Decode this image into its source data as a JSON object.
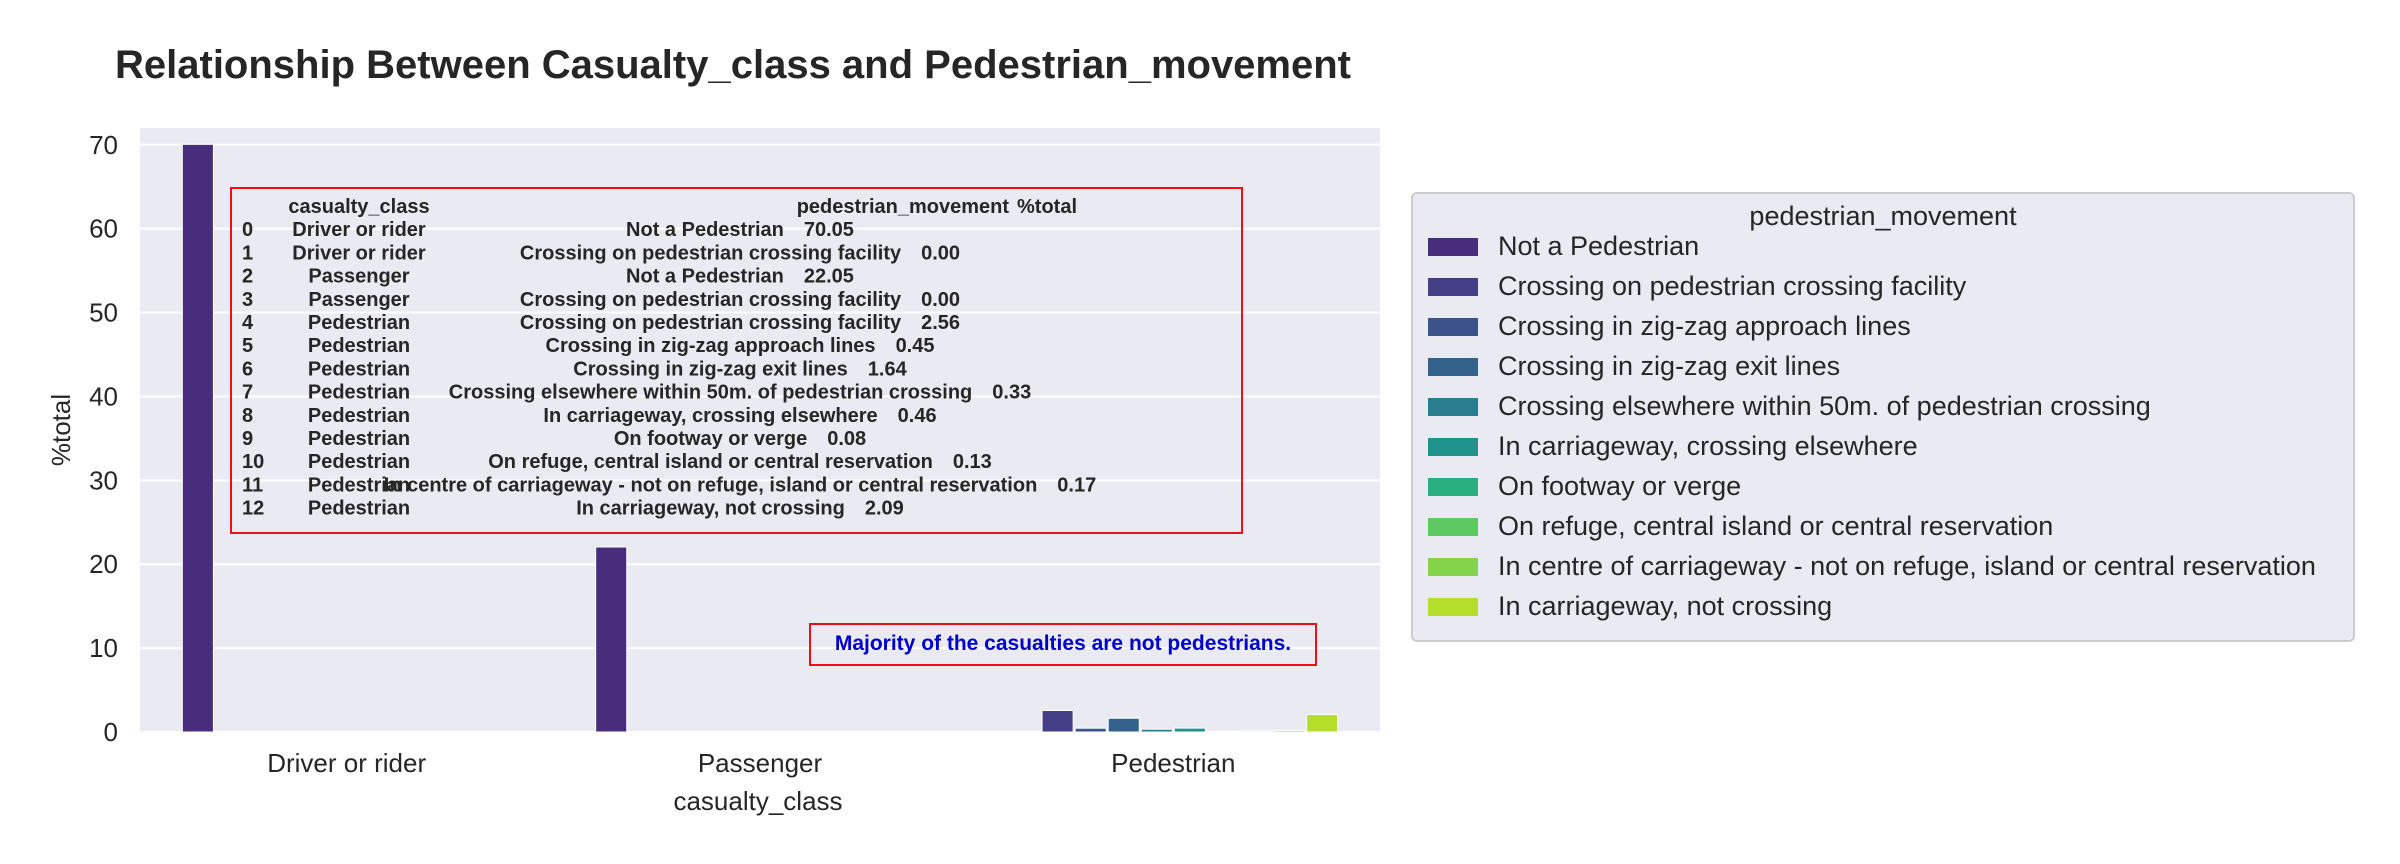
{
  "chart_data": {
    "type": "bar",
    "title": "Relationship Between Casualty_class and Pedestrian_movement",
    "xlabel": "casualty_class",
    "ylabel": "%total",
    "ylim": [
      0,
      72
    ],
    "yticks": [
      0,
      10,
      20,
      30,
      40,
      50,
      60,
      70
    ],
    "grid": true,
    "categories": [
      "Driver or rider",
      "Passenger",
      "Pedestrian"
    ],
    "legend": {
      "title": "pedestrian_movement",
      "placement": "right"
    },
    "series": [
      {
        "name": "Not a Pedestrian",
        "color": "#472d7b",
        "values": [
          70.05,
          22.05,
          null
        ]
      },
      {
        "name": "Crossing on pedestrian crossing facility",
        "color": "#433e85",
        "values": [
          0.0,
          0.0,
          2.56
        ]
      },
      {
        "name": "Crossing in zig-zag approach lines",
        "color": "#3b528b",
        "values": [
          null,
          null,
          0.45
        ]
      },
      {
        "name": "Crossing in zig-zag exit lines",
        "color": "#33638d",
        "values": [
          null,
          null,
          1.64
        ]
      },
      {
        "name": "Crossing elsewhere within 50m. of pedestrian crossing",
        "color": "#287d8e",
        "values": [
          null,
          null,
          0.33
        ]
      },
      {
        "name": "In carriageway, crossing elsewhere",
        "color": "#20928c",
        "values": [
          null,
          null,
          0.46
        ]
      },
      {
        "name": "On footway or verge",
        "color": "#29af7f",
        "values": [
          null,
          null,
          0.08
        ]
      },
      {
        "name": "On refuge, central island or central reservation",
        "color": "#5ec962",
        "values": [
          null,
          null,
          0.13
        ]
      },
      {
        "name": "In centre of carriageway - not on refuge, island or central reservation",
        "color": "#84d44b",
        "values": [
          null,
          null,
          0.17
        ]
      },
      {
        "name": "In carriageway, not crossing",
        "color": "#b5de2b",
        "values": [
          null,
          null,
          2.09
        ]
      }
    ],
    "table": {
      "header": [
        "",
        "casualty_class",
        "pedestrian_movement",
        "%total"
      ],
      "rows": [
        [
          "0",
          "Driver or rider",
          "Not a Pedestrian",
          "70.05"
        ],
        [
          "1",
          "Driver or rider",
          "Crossing on pedestrian crossing facility",
          "0.00"
        ],
        [
          "2",
          "Passenger",
          "Not a Pedestrian",
          "22.05"
        ],
        [
          "3",
          "Passenger",
          "Crossing on pedestrian crossing facility",
          "0.00"
        ],
        [
          "4",
          "Pedestrian",
          "Crossing on pedestrian crossing facility",
          "2.56"
        ],
        [
          "5",
          "Pedestrian",
          "Crossing in zig-zag approach lines",
          "0.45"
        ],
        [
          "6",
          "Pedestrian",
          "Crossing in zig-zag exit lines",
          "1.64"
        ],
        [
          "7",
          "Pedestrian",
          "Crossing elsewhere within 50m. of pedestrian crossing",
          "0.33"
        ],
        [
          "8",
          "Pedestrian",
          "In carriageway, crossing elsewhere",
          "0.46"
        ],
        [
          "9",
          "Pedestrian",
          "On footway or verge",
          "0.08"
        ],
        [
          "10",
          "Pedestrian",
          "On refuge, central island or central reservation",
          "0.13"
        ],
        [
          "11",
          "Pedestrian",
          "In centre of carriageway - not on refuge, island or central reservation",
          "0.17"
        ],
        [
          "12",
          "Pedestrian",
          "In carriageway, not crossing",
          "2.09"
        ]
      ]
    },
    "annotation": "Majority of the casualties are not pedestrians.",
    "colors": {
      "plot_bg": "#eaeaf2",
      "grid": "#ffffff",
      "box": "#ff0000",
      "note_text": "#0000cc"
    }
  }
}
